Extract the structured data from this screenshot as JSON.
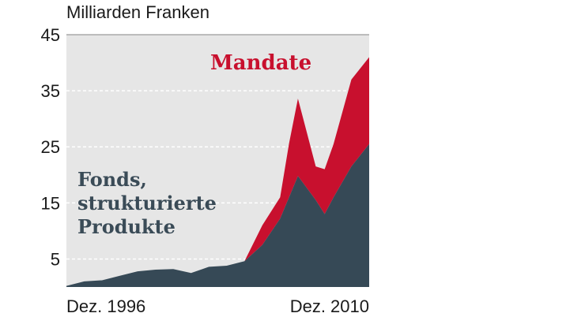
{
  "chart_data": {
    "type": "area",
    "ylabel": "Milliarden Franken",
    "ylim": [
      0,
      45
    ],
    "yticks": [
      "45",
      "35",
      "25",
      "15",
      "5"
    ],
    "ytick_values": [
      45,
      35,
      25,
      15,
      5
    ],
    "xlim": [
      0,
      17
    ],
    "xtick_labels": [
      "Dez. 1996",
      "Dez. 2010"
    ],
    "grid": true,
    "colors": {
      "plot_bg": "#e6e6e6",
      "grid": "#ffffff",
      "fonds": "#364956",
      "mandate": "#c8102e"
    },
    "stacked": true,
    "series": [
      {
        "name": "Fonds, strukturierte Produkte",
        "x": [
          0,
          1,
          2,
          3,
          4,
          5,
          6,
          7,
          8,
          9,
          10,
          11,
          12,
          12.5,
          13,
          14,
          14.5,
          15,
          16,
          17
        ],
        "values": [
          0.2,
          1.0,
          1.2,
          2.0,
          2.8,
          3.1,
          3.2,
          2.5,
          3.6,
          3.8,
          4.6,
          7.5,
          12.2,
          16.0,
          19.8,
          15.5,
          13.0,
          16.0,
          21.5,
          25.5
        ]
      },
      {
        "name": "Mandate",
        "x": [
          0,
          1,
          2,
          3,
          4,
          5,
          6,
          7,
          8,
          9,
          10,
          11,
          12,
          12.5,
          13,
          14,
          14.5,
          15,
          16,
          17
        ],
        "values": [
          0,
          0,
          0,
          0,
          0,
          0,
          0,
          0,
          0,
          0,
          0,
          3.5,
          3.8,
          9.6,
          13.8,
          6.0,
          8.0,
          9.5,
          15.5,
          15.5
        ]
      }
    ]
  }
}
